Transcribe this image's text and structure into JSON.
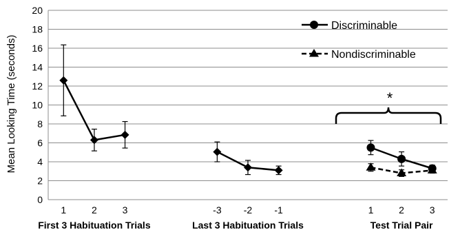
{
  "chart_data": {
    "type": "line",
    "ylabel": "Mean Looking Time (seconds)",
    "ylim": [
      0,
      20
    ],
    "yticks": [
      0,
      2,
      4,
      6,
      8,
      10,
      12,
      14,
      16,
      18,
      20
    ],
    "grid": true,
    "legend_position": "top-right",
    "annotation": "*",
    "groups": [
      {
        "label": "First 3 Habituation Trials",
        "ticks": [
          "1",
          "2",
          "3"
        ]
      },
      {
        "label": "Last 3 Habituation Trials",
        "ticks": [
          "-3",
          "-2",
          "-1"
        ]
      },
      {
        "label": "Test Trial Pair",
        "ticks": [
          "1",
          "2",
          "3"
        ]
      }
    ],
    "series": [
      {
        "name": "Discriminable",
        "marker": "circle",
        "dash": "solid",
        "color": "#000000",
        "segments": [
          {
            "group": 0,
            "values": [
              12.6,
              6.3,
              6.85
            ],
            "errors": [
              3.75,
              1.15,
              1.4
            ]
          },
          {
            "group": 1,
            "values": [
              5.05,
              3.4,
              3.1
            ],
            "errors": [
              1.05,
              0.75,
              0.45
            ]
          },
          {
            "group": 2,
            "values": [
              5.5,
              4.3,
              3.3
            ],
            "errors": [
              0.75,
              0.75,
              0.35
            ]
          }
        ]
      },
      {
        "name": "Nondiscriminable",
        "marker": "triangle",
        "dash": "dashed",
        "color": "#000000",
        "segments": [
          {
            "group": 2,
            "values": [
              3.4,
              2.8,
              3.1
            ],
            "errors": [
              0.4,
              0.35,
              0.3
            ]
          }
        ]
      }
    ]
  }
}
